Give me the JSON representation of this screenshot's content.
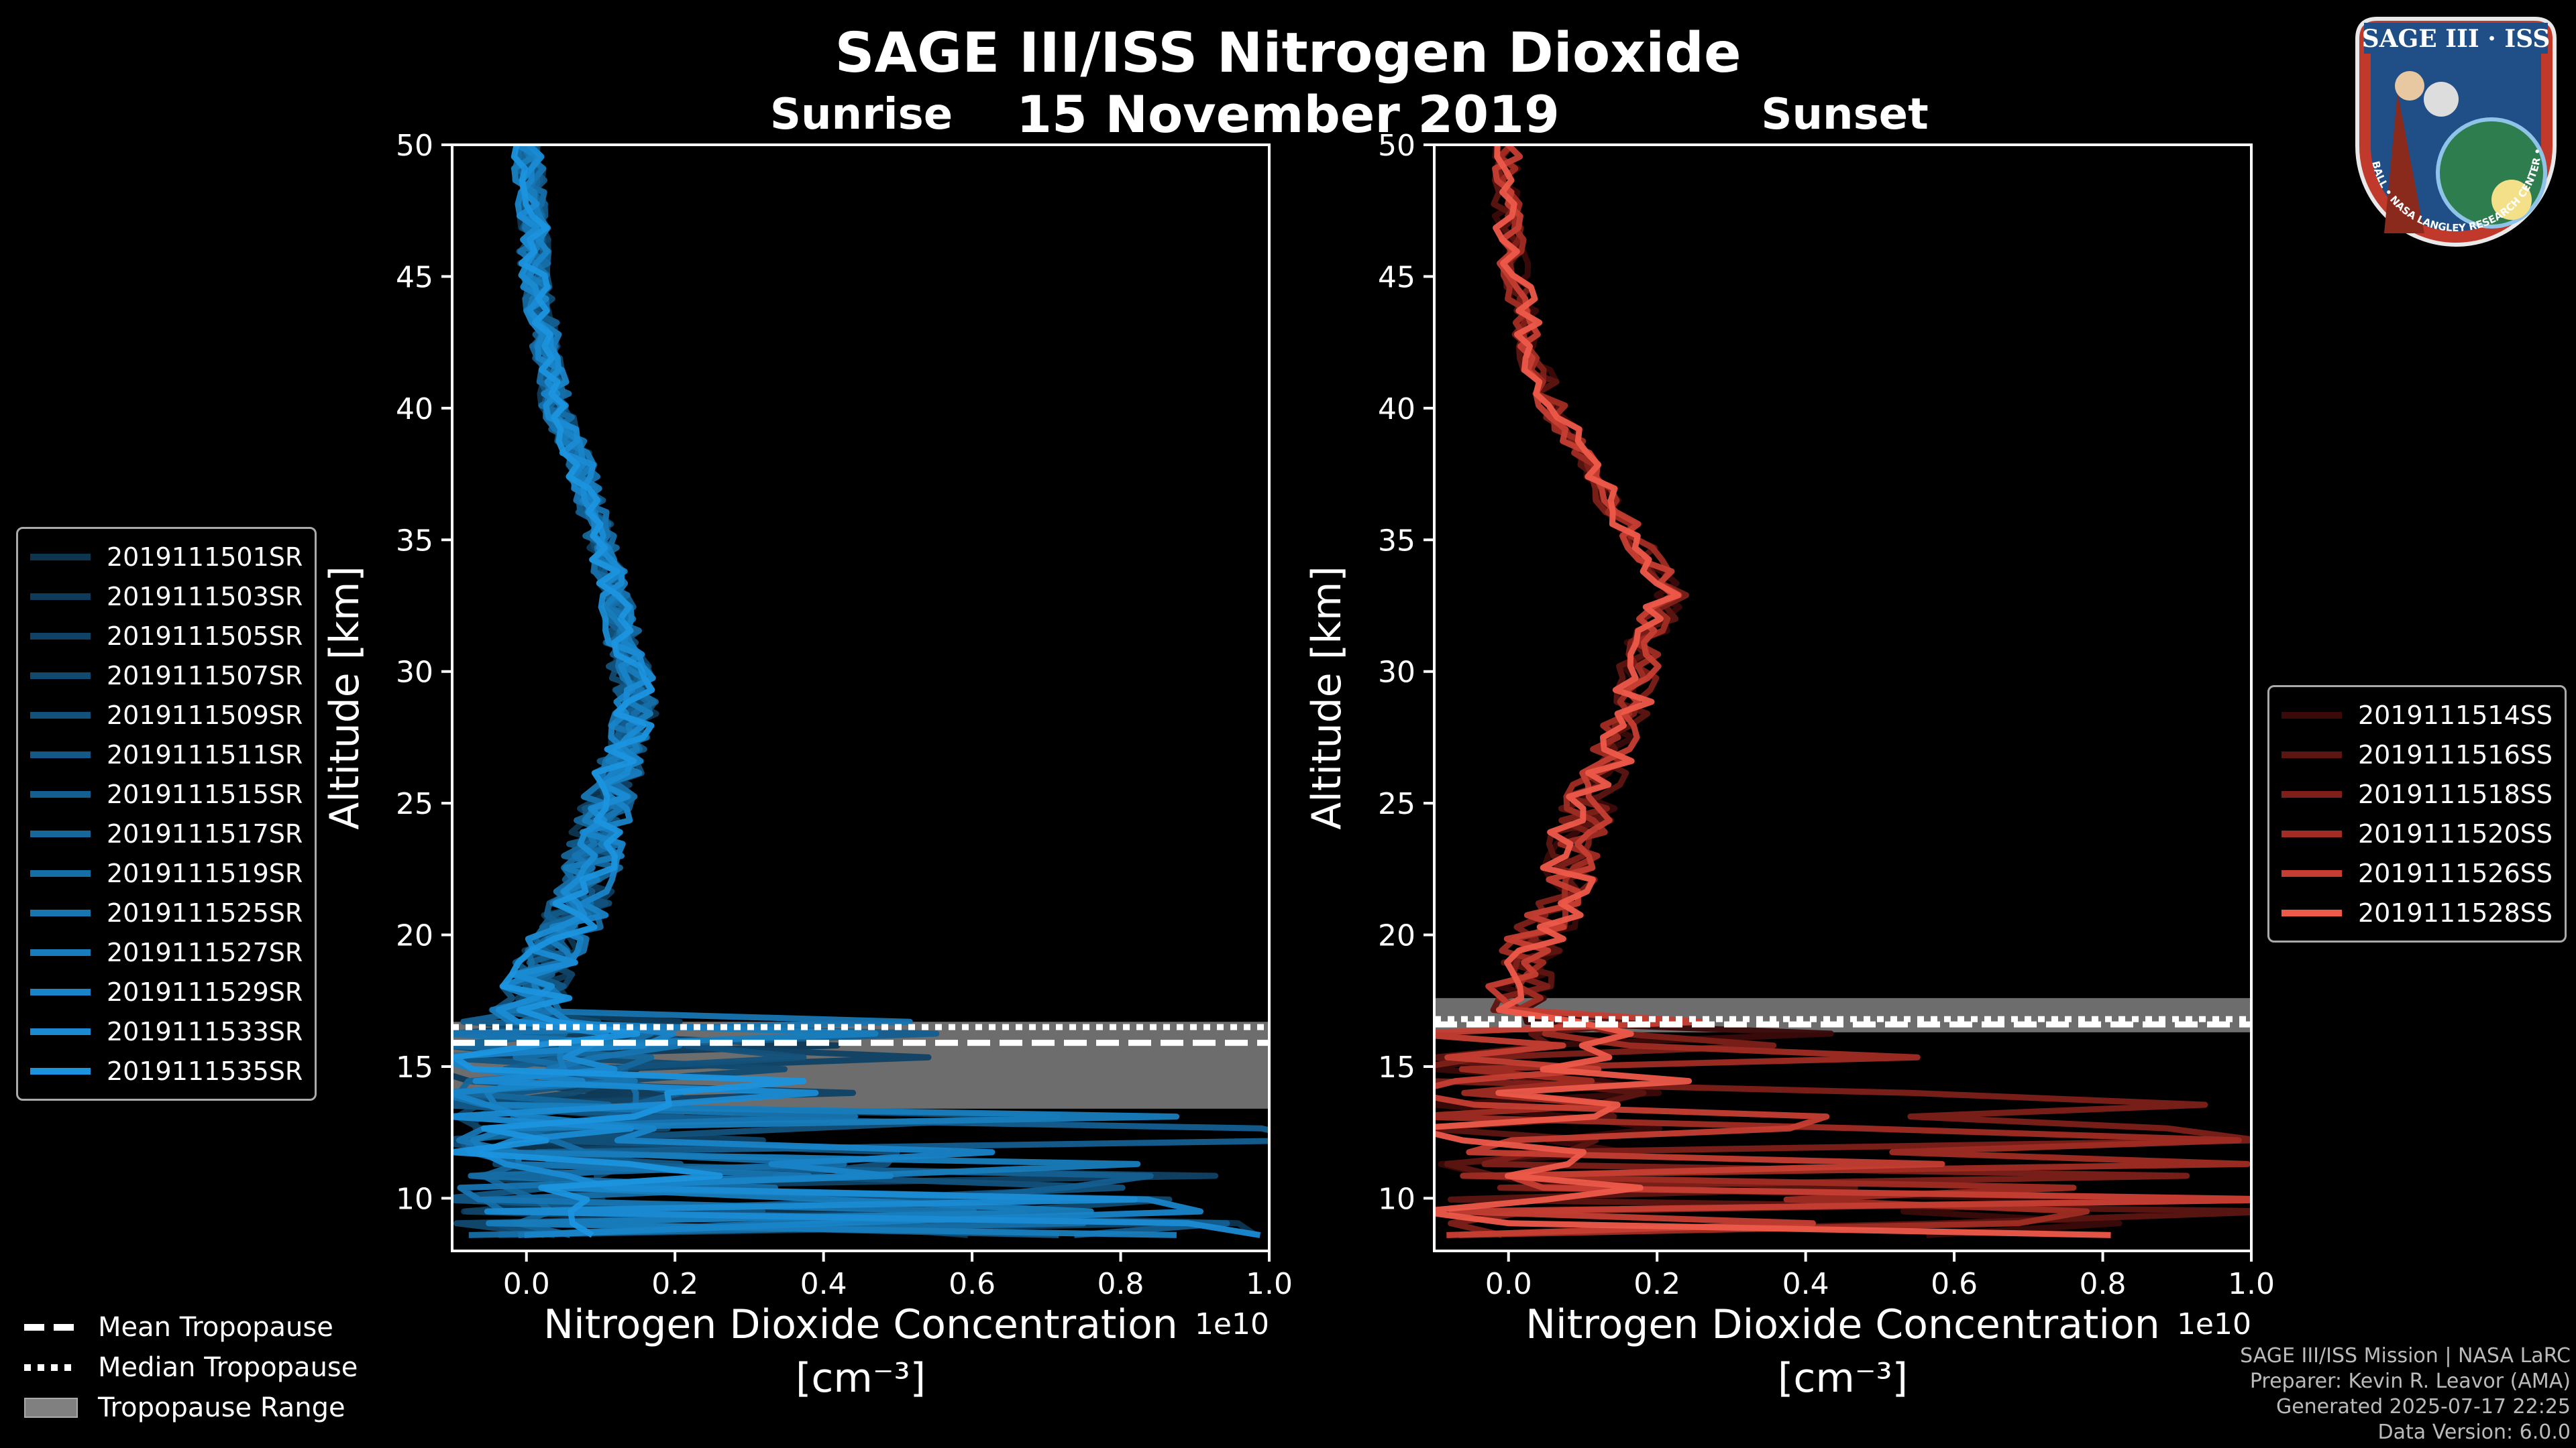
{
  "title": "SAGE III/ISS Nitrogen Dioxide",
  "date": "15 November 2019",
  "panels": {
    "sunrise": {
      "label": "Sunrise"
    },
    "sunset": {
      "label": "Sunset"
    }
  },
  "axes": {
    "ylabel": "Altitude [km]",
    "xlabel_line1": "Nitrogen Dioxide Concentration",
    "xlabel_line2": "[cm⁻³]",
    "x_offset_label": "1e10",
    "xlim": [
      -0.1,
      1.0
    ],
    "ylim": [
      8,
      50
    ],
    "x_ticks": [
      "0.0",
      "0.2",
      "0.4",
      "0.6",
      "0.8",
      "1.0"
    ],
    "y_ticks": [
      "10",
      "15",
      "20",
      "25",
      "30",
      "35",
      "40",
      "45",
      "50"
    ]
  },
  "sunrise_legend": [
    {
      "label": "2019111501SR",
      "color": "#0d3550"
    },
    {
      "label": "2019111503SR",
      "color": "#0e3b5a"
    },
    {
      "label": "2019111505SR",
      "color": "#104265"
    },
    {
      "label": "2019111507SR",
      "color": "#114a70"
    },
    {
      "label": "2019111509SR",
      "color": "#12517b"
    },
    {
      "label": "2019111511SR",
      "color": "#135886"
    },
    {
      "label": "2019111515SR",
      "color": "#145f91"
    },
    {
      "label": "2019111517SR",
      "color": "#15679c"
    },
    {
      "label": "2019111519SR",
      "color": "#166ea7"
    },
    {
      "label": "2019111525SR",
      "color": "#1775b2"
    },
    {
      "label": "2019111527SR",
      "color": "#187dbd"
    },
    {
      "label": "2019111529SR",
      "color": "#1984c8"
    },
    {
      "label": "2019111533SR",
      "color": "#1a8bd3"
    },
    {
      "label": "2019111535SR",
      "color": "#1b93de"
    }
  ],
  "sunset_legend": [
    {
      "label": "2019111514SS",
      "color": "#3a0a08"
    },
    {
      "label": "2019111516SS",
      "color": "#5c1511"
    },
    {
      "label": "2019111518SS",
      "color": "#7e2019"
    },
    {
      "label": "2019111520SS",
      "color": "#a02c23"
    },
    {
      "label": "2019111526SS",
      "color": "#c63e33"
    },
    {
      "label": "2019111528SS",
      "color": "#ee5a4a"
    }
  ],
  "tropopause_legend": {
    "mean": "Mean Tropopause",
    "median": "Median Tropopause",
    "range": "Tropopause Range"
  },
  "footer": {
    "line1": "SAGE III/ISS Mission | NASA LaRC",
    "line2": "Preparer: Kevin R. Leavor (AMA)",
    "line3": "Generated 2025-07-17 22:25",
    "line4": "Data Version: 6.0.0"
  },
  "logo": {
    "text": "SAGE III · ISS",
    "ring_text": "BALL • NASA LANGLEY RESEARCH CENTER • TAS-I • ESA"
  },
  "chart_data": [
    {
      "type": "line",
      "panel": "Sunrise",
      "xlabel": "Nitrogen Dioxide Concentration [cm⁻³]",
      "ylabel": "Altitude [km]",
      "x_scale": "1e10",
      "xlim": [
        -0.1,
        1.0
      ],
      "ylim": [
        8,
        50
      ],
      "tropopause": {
        "mean": 15.9,
        "median": 16.5,
        "range": [
          13.4,
          16.7
        ]
      },
      "profile_envelope": {
        "altitude": [
          50,
          47,
          45,
          42,
          40,
          38,
          35,
          33,
          31,
          29,
          27,
          25,
          23,
          21,
          19,
          17
        ],
        "x": [
          0.0,
          0.01,
          0.01,
          0.03,
          0.04,
          0.07,
          0.1,
          0.12,
          0.13,
          0.15,
          0.13,
          0.11,
          0.09,
          0.07,
          0.03,
          0.0
        ]
      }
    },
    {
      "type": "line",
      "panel": "Sunset",
      "xlabel": "Nitrogen Dioxide Concentration [cm⁻³]",
      "ylabel": "Altitude [km]",
      "x_scale": "1e10",
      "xlim": [
        -0.1,
        1.0
      ],
      "ylim": [
        8,
        50
      ],
      "tropopause": {
        "mean": 16.6,
        "median": 16.8,
        "range": [
          16.3,
          17.6
        ]
      },
      "profile_envelope": {
        "altitude": [
          50,
          47,
          45,
          42,
          40,
          38,
          35,
          33,
          31,
          29,
          27,
          25,
          23,
          21,
          19,
          17
        ],
        "x": [
          0.0,
          0.0,
          0.01,
          0.03,
          0.06,
          0.1,
          0.17,
          0.22,
          0.18,
          0.17,
          0.14,
          0.11,
          0.08,
          0.07,
          0.02,
          0.0
        ]
      }
    }
  ]
}
